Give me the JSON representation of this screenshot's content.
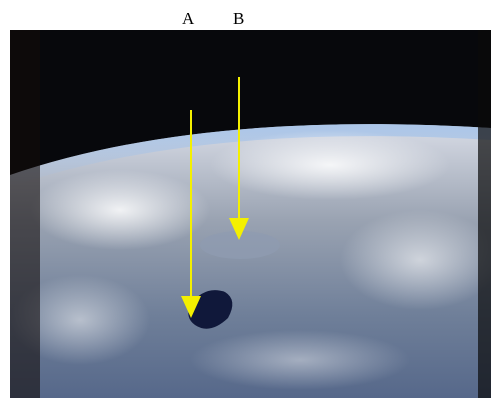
{
  "labels": [
    "A",
    "B"
  ]
}
